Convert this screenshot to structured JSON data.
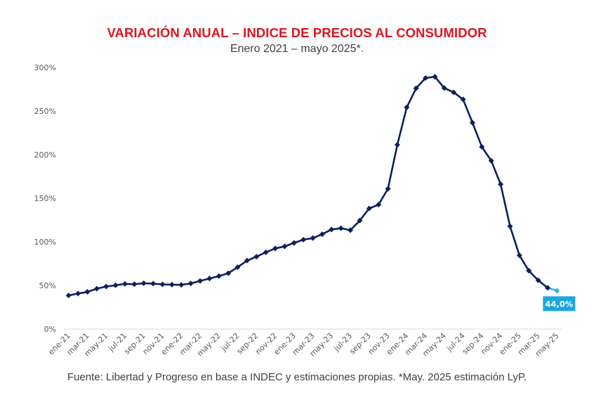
{
  "chart_data": {
    "type": "line",
    "title": "VARIACIÓN ANUAL – INDICE DE PRECIOS AL CONSUMIDOR",
    "subtitle": "Enero 2021 – mayo 2025*.",
    "source": "Fuente: Libertad y Progreso en base a INDEC y estimaciones propias. *May. 2025 estimación LyP.",
    "xlabel": "",
    "ylabel": "",
    "ylim": [
      0,
      300
    ],
    "yticks": [
      0,
      50,
      100,
      150,
      200,
      250,
      300
    ],
    "ytick_labels": [
      "0%",
      "50%",
      "100%",
      "150%",
      "200%",
      "250%",
      "300%"
    ],
    "grid": false,
    "legend": "none",
    "colors": {
      "series": "#0d1f5c",
      "estimate": "#29b5e8",
      "title": "#e0141e",
      "label_box": "#1aa7e0"
    },
    "x": [
      "ene-21",
      "feb-21",
      "mar-21",
      "abr-21",
      "may-21",
      "jun-21",
      "jul-21",
      "ago-21",
      "sep-21",
      "oct-21",
      "nov-21",
      "dic-21",
      "ene-22",
      "feb-22",
      "mar-22",
      "abr-22",
      "may-22",
      "jun-22",
      "jul-22",
      "ago-22",
      "sep-22",
      "oct-22",
      "nov-22",
      "dic-22",
      "ene-23",
      "feb-23",
      "mar-23",
      "abr-23",
      "may-23",
      "jun-23",
      "jul-23",
      "ago-23",
      "sep-23",
      "oct-23",
      "nov-23",
      "dic-23",
      "ene-24",
      "feb-24",
      "mar-24",
      "abr-24",
      "may-24",
      "jun-24",
      "jul-24",
      "ago-24",
      "sep-24",
      "oct-24",
      "nov-24",
      "dic-24",
      "ene-25",
      "feb-25",
      "mar-25",
      "abr-25",
      "may-25"
    ],
    "xtick_labels": [
      "ene-21",
      "mar-21",
      "may-21",
      "jul-21",
      "sep-21",
      "nov-21",
      "ene-22",
      "mar-22",
      "may-22",
      "jul-22",
      "sep-22",
      "nov-22",
      "ene-23",
      "mar-23",
      "may-23",
      "jul-23",
      "sep-23",
      "nov-23",
      "ene-24",
      "mar-24",
      "may-24",
      "jul-24",
      "sep-24",
      "nov-24",
      "ene-25",
      "mar-25",
      "may-25"
    ],
    "series": [
      {
        "name": "Variación anual IPC",
        "values": [
          38.5,
          40.7,
          42.6,
          46.3,
          48.8,
          50.2,
          51.8,
          51.4,
          52.5,
          52.1,
          51.2,
          50.9,
          50.7,
          52.3,
          55.1,
          58.0,
          60.7,
          64.0,
          71.0,
          78.5,
          83.0,
          88.0,
          92.4,
          94.8,
          98.8,
          102.5,
          104.3,
          108.8,
          114.2,
          115.6,
          113.4,
          124.4,
          138.3,
          142.7,
          160.9,
          211.4,
          254.2,
          276.2,
          287.9,
          289.4,
          276.4,
          271.5,
          263.4,
          236.7,
          209.0,
          193.0,
          166.0,
          117.8,
          84.5,
          66.9,
          55.9,
          47.3,
          44.0
        ]
      }
    ],
    "estimate_point": {
      "x": "may-25",
      "value": 44.0,
      "label": "44,0%"
    }
  }
}
